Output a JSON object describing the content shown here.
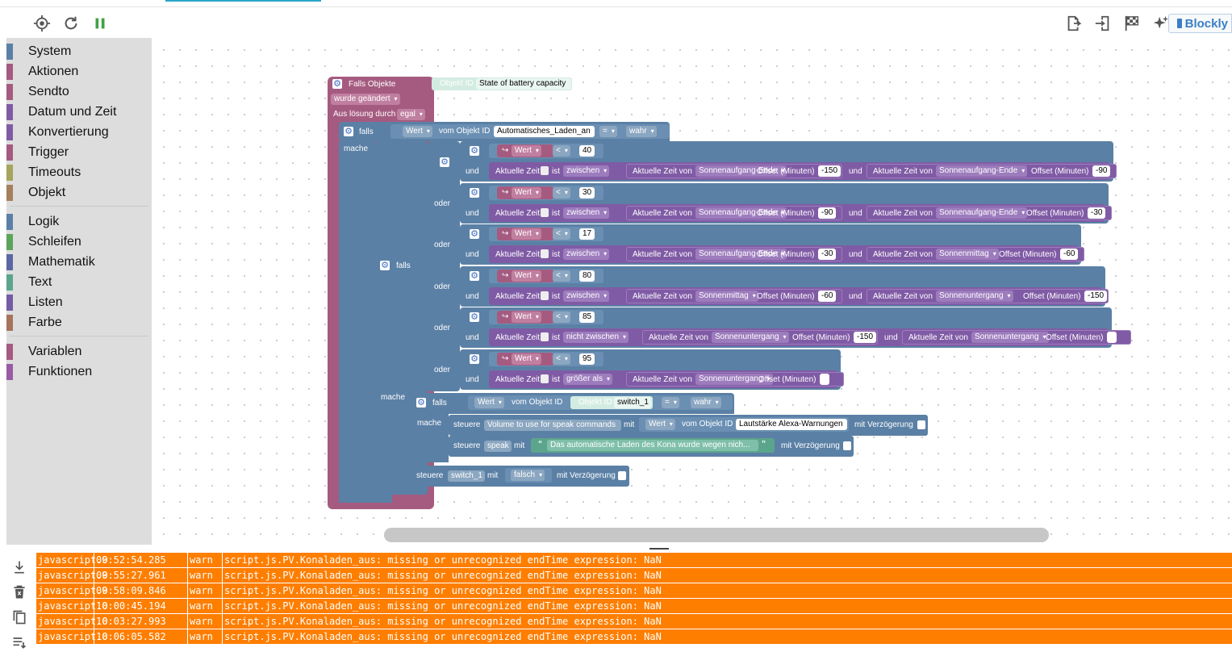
{
  "toolbar": {
    "target_icon": "crosshair-icon",
    "refresh_icon": "refresh-icon",
    "pause_icon": "pause-icon",
    "export_icon": "export-icon",
    "import_icon": "import-icon",
    "checkered_flag_icon": "checkered-flag-icon",
    "sparkle_icon": "sparkle-icon",
    "blockly_label": "Blockly",
    "accent": "#2aa6c9"
  },
  "toolbox": {
    "groups": [
      [
        {
          "label": "System",
          "color": "#5b80a5"
        },
        {
          "label": "Aktionen",
          "color": "#a55b80"
        },
        {
          "label": "Sendto",
          "color": "#a55b80"
        },
        {
          "label": "Datum und Zeit",
          "color": "#805ba5"
        },
        {
          "label": "Konvertierung",
          "color": "#805ba5"
        },
        {
          "label": "Trigger",
          "color": "#a55b80"
        },
        {
          "label": "Timeouts",
          "color": "#a5a55b"
        },
        {
          "label": "Objekt",
          "color": "#a5805b"
        }
      ],
      [
        {
          "label": "Logik",
          "color": "#5b80a5"
        },
        {
          "label": "Schleifen",
          "color": "#5ba55b"
        },
        {
          "label": "Mathematik",
          "color": "#5b67a5"
        },
        {
          "label": "Text",
          "color": "#5ba58c"
        },
        {
          "label": "Listen",
          "color": "#745ba5"
        },
        {
          "label": "Farbe",
          "color": "#a5745b"
        }
      ],
      [
        {
          "label": "Variablen",
          "color": "#a55b80"
        },
        {
          "label": "Funktionen",
          "color": "#995ba5"
        }
      ]
    ]
  },
  "blocks": {
    "trigger": {
      "falls_objekte": "Falls Objekte",
      "objekt_id": "Objekt ID",
      "object_name": "State of battery capacity",
      "wurde_geandert": "wurde geändert",
      "auslosung_durch": "Aus lösung durch",
      "egal": "egal"
    },
    "if1": {
      "falls": "falls",
      "mache": "mache",
      "wert": "Wert",
      "vom_objekt_id": "vom Objekt ID",
      "object": "Automatisches_Laden_an",
      "op": "=",
      "val": "wahr"
    },
    "conditions": [
      {
        "num": "40",
        "und": "und",
        "zeit": "Aktuelle Zeit",
        "ist": "ist",
        "mode": "zwischen",
        "a_label": "Aktuelle Zeit von",
        "a_val": "Sonnenaufgang-Ende",
        "a_off": "Offset (Minuten)",
        "a_num": "-150",
        "und2": "und",
        "b_label": "Aktuelle Zeit von",
        "b_val": "Sonnenaufgang-Ende",
        "b_off": "Offset (Minuten)",
        "b_num": "-90"
      },
      {
        "num": "30",
        "und": "und",
        "zeit": "Aktuelle Zeit",
        "ist": "ist",
        "mode": "zwischen",
        "a_label": "Aktuelle Zeit von",
        "a_val": "Sonnenaufgang-Ende",
        "a_off": "Offset (Minuten)",
        "a_num": "-90",
        "und2": "und",
        "b_label": "Aktuelle Zeit von",
        "b_val": "Sonnenaufgang-Ende",
        "b_off": "Offset (Minuten)",
        "b_num": "-30"
      },
      {
        "num": "17",
        "und": "und",
        "zeit": "Aktuelle Zeit",
        "ist": "ist",
        "mode": "zwischen",
        "a_label": "Aktuelle Zeit von",
        "a_val": "Sonnenaufgang-Ende",
        "a_off": "Offset (Minuten)",
        "a_num": "-30",
        "und2": "und",
        "b_label": "Aktuelle Zeit von",
        "b_val": "Sonnenmittag",
        "b_off": "Offset (Minuten)",
        "b_num": "-60"
      },
      {
        "num": "80",
        "und": "und",
        "zeit": "Aktuelle Zeit",
        "ist": "ist",
        "mode": "zwischen",
        "a_label": "Aktuelle Zeit von",
        "a_val": "Sonnenmittag",
        "a_off": "Offset (Minuten)",
        "a_num": "-60",
        "und2": "und",
        "b_label": "Aktuelle Zeit von",
        "b_val": "Sonnenuntergang",
        "b_off": "Offset (Minuten)",
        "b_num": "-150"
      },
      {
        "num": "85",
        "und": "und",
        "zeit": "Aktuelle Zeit",
        "ist": "ist",
        "mode": "nicht zwischen",
        "a_label": "Aktuelle Zeit von",
        "a_val": "Sonnenuntergang",
        "a_off": "Offset (Minuten)",
        "a_num": "-150",
        "und2": "und",
        "b_label": "Aktuelle Zeit von",
        "b_val": "Sonnenuntergang",
        "b_off": "Offset (Minuten)",
        "b_num": ""
      },
      {
        "num": "95",
        "und": "und",
        "zeit": "Aktuelle Zeit",
        "ist": "ist",
        "mode": "größer als",
        "a_label": "Aktuelle Zeit von",
        "a_val": "Sonnenuntergang",
        "a_off": "Offset (Minuten)",
        "a_num": ""
      }
    ],
    "cond_wert": "Wert",
    "cond_op": "<",
    "oder": "oder",
    "if2": {
      "falls": "falls",
      "mache": "mache"
    },
    "if3": {
      "falls": "falls",
      "mache": "mache",
      "wert": "Wert",
      "vom_objekt_id": "vom Objekt ID",
      "objekt_id": "Objekt ID",
      "object": "switch_1",
      "op": "=",
      "val": "wahr"
    },
    "set1": {
      "steuere": "steuere",
      "object": "Volume to use for speak commands",
      "mit": "mit",
      "wert": "Wert",
      "vom_objekt_id": "vom Objekt ID",
      "src": "Lautstärke Alexa-Warnungen",
      "delay": "mit Verzögerung"
    },
    "set2": {
      "steuere": "steuere",
      "object": "speak",
      "mit": "mit",
      "text": "Das automatische Laden des Kona wurde wegen nich...",
      "delay": "mit Verzögerung"
    },
    "set3": {
      "steuere": "steuere",
      "object": "switch_1",
      "mit": "mit",
      "val": "falsch",
      "delay": "mit Verzögerung"
    }
  },
  "log": {
    "download_icon": "download-icon",
    "delete_icon": "delete-icon",
    "copy_icon": "copy-icon",
    "list_icon": "list-icon",
    "row_color": "#fe7e00",
    "rows": [
      {
        "source": "javascript.0",
        "time": "09:52:54.285",
        "level": "warn",
        "message": "script.js.PV.Konaladen_aus: missing or unrecognized endTime expression: NaN"
      },
      {
        "source": "javascript.0",
        "time": "09:55:27.961",
        "level": "warn",
        "message": "script.js.PV.Konaladen_aus: missing or unrecognized endTime expression: NaN"
      },
      {
        "source": "javascript.0",
        "time": "09:58:09.846",
        "level": "warn",
        "message": "script.js.PV.Konaladen_aus: missing or unrecognized endTime expression: NaN"
      },
      {
        "source": "javascript.0",
        "time": "10:00:45.194",
        "level": "warn",
        "message": "script.js.PV.Konaladen_aus: missing or unrecognized endTime expression: NaN"
      },
      {
        "source": "javascript.0",
        "time": "10:03:27.993",
        "level": "warn",
        "message": "script.js.PV.Konaladen_aus: missing or unrecognized endTime expression: NaN"
      },
      {
        "source": "javascript.0",
        "time": "10:06:05.582",
        "level": "warn",
        "message": "script.js.PV.Konaladen_aus: missing or unrecognized endTime expression: NaN"
      }
    ]
  }
}
